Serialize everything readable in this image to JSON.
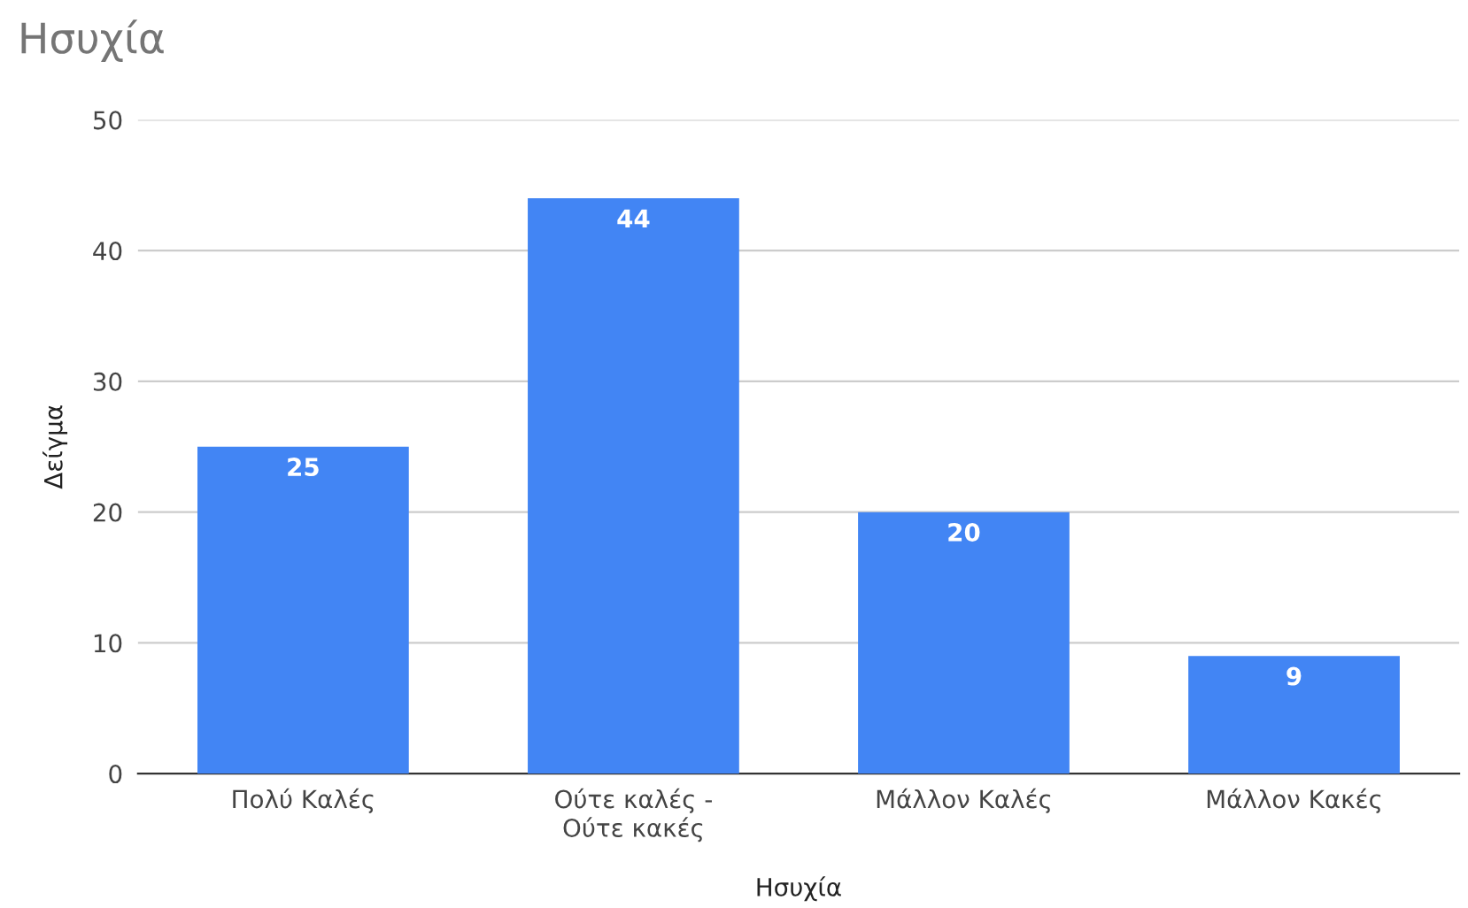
{
  "chart_data": {
    "type": "bar",
    "title": "Ησυχία",
    "xlabel": "Ησυχία",
    "ylabel": "Δείγμα",
    "categories": [
      "Πολύ Καλές",
      "Ούτε καλές -\nΟύτε κακές",
      "Μάλλον Καλές",
      "Μάλλον Κακές"
    ],
    "values": [
      25,
      44,
      20,
      9
    ],
    "color": "#4285f4",
    "ylim": [
      0,
      50
    ],
    "yticks": [
      0,
      10,
      20,
      30,
      40,
      50
    ],
    "grid": "y",
    "data_labels": true
  }
}
